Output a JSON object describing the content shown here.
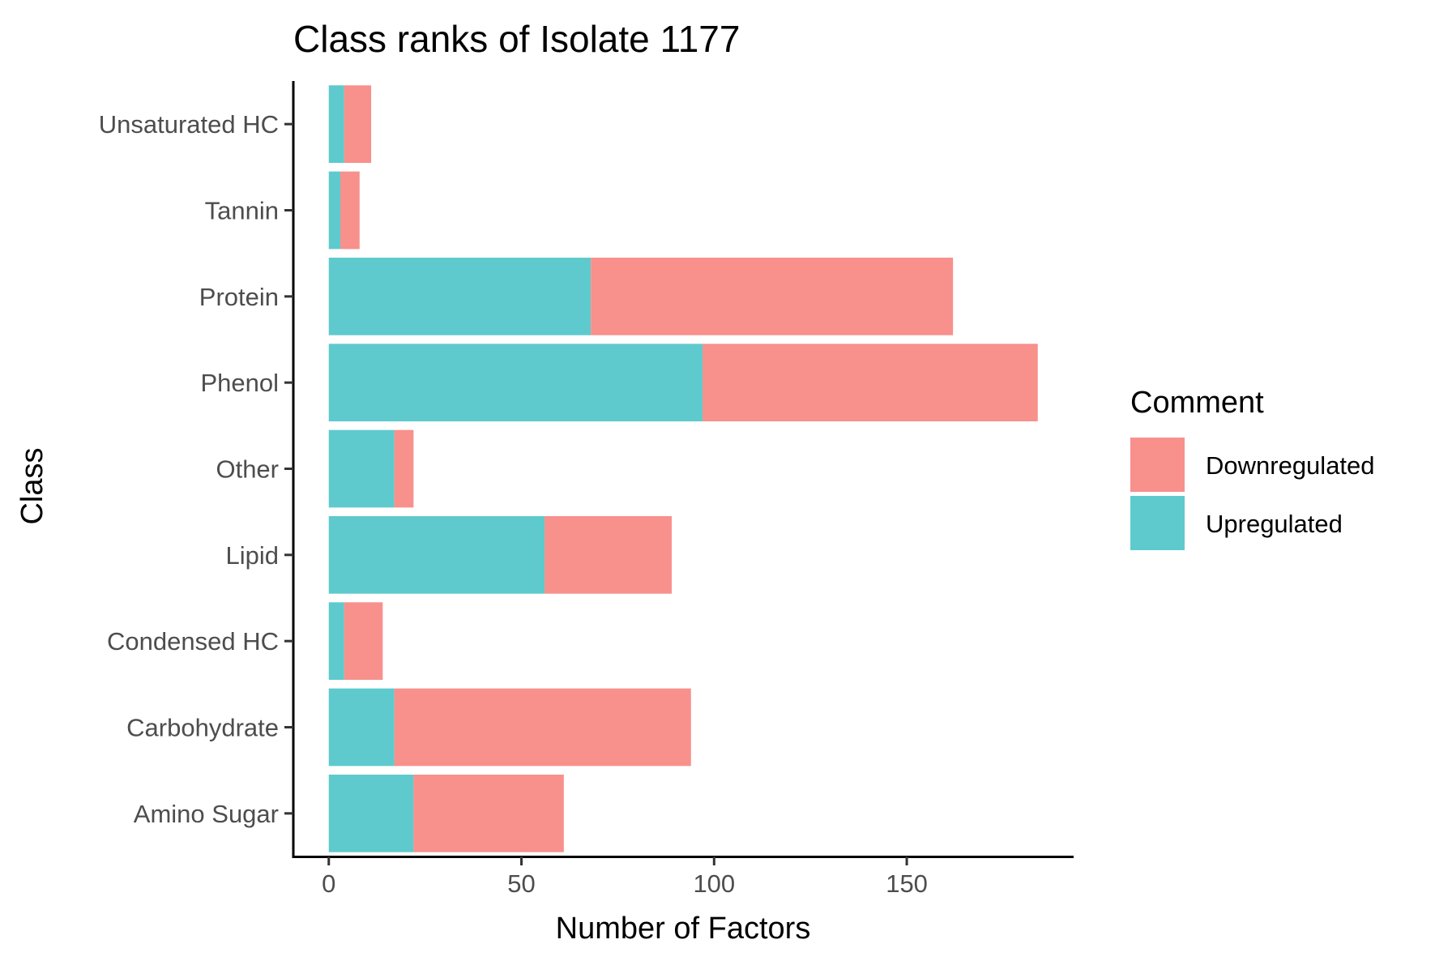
{
  "chart_data": {
    "type": "bar",
    "orientation": "horizontal",
    "stacked": true,
    "title": "Class ranks of Isolate 1177",
    "xlabel": "Number of Factors",
    "ylabel": "Class",
    "categories": [
      "Amino Sugar",
      "Carbohydrate",
      "Condensed HC",
      "Lipid",
      "Other",
      "Phenol",
      "Protein",
      "Tannin",
      "Unsaturated HC"
    ],
    "series": [
      {
        "name": "Upregulated",
        "color": "#5ECACD",
        "values": [
          22,
          17,
          4,
          56,
          17,
          97,
          68,
          3,
          4
        ]
      },
      {
        "name": "Downregulated",
        "color": "#F8908C",
        "values": [
          39,
          77,
          10,
          33,
          5,
          87,
          94,
          5,
          7
        ]
      }
    ],
    "xlim": [
      -9.2,
      193.3
    ],
    "xticks": [
      "0",
      "50",
      "100",
      "150"
    ],
    "xtick_values": [
      0,
      50,
      100,
      150
    ],
    "grid": false,
    "legend": {
      "title": "Comment",
      "placement": "right",
      "order": [
        "Downregulated",
        "Upregulated"
      ]
    }
  }
}
